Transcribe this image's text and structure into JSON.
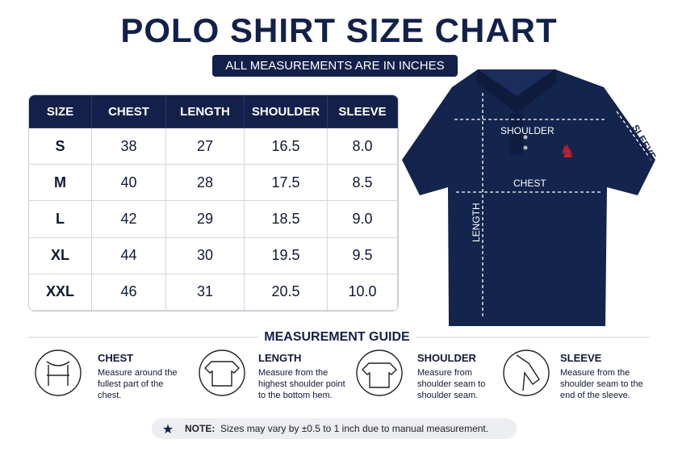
{
  "title": "POLO SHIRT SIZE CHART",
  "subtitle": "ALL MEASUREMENTS ARE IN INCHES",
  "table": {
    "header": [
      "SIZE",
      "CHEST",
      "LENGTH",
      "SHOULDER",
      "SLEEVE"
    ],
    "rows": [
      [
        "S",
        "38",
        "27",
        "16.5",
        "8.0"
      ],
      [
        "M",
        "40",
        "28",
        "17.5",
        "8.5"
      ],
      [
        "L",
        "42",
        "29",
        "18.5",
        "9.0"
      ],
      [
        "XL",
        "44",
        "30",
        "19.5",
        "9.5"
      ],
      [
        "XXL",
        "46",
        "31",
        "20.5",
        "10.0"
      ]
    ]
  },
  "shirt": {
    "shoulder": "SHOULDER",
    "chest": "CHEST",
    "length": "LENGTH",
    "sleeve": "SLEEVE"
  },
  "guide": {
    "title": "MEASUREMENT GUIDE",
    "items": [
      {
        "title": "CHEST",
        "text": "Measure around the fullest part of the chest."
      },
      {
        "title": "LENGTH",
        "text": "Measure from the highest shoulder point to the bottom hem."
      },
      {
        "title": "SHOULDER",
        "text": "Measure from shoulder seam to shoulder seam."
      },
      {
        "title": "SLEEVE",
        "text": "Measure from the shoulder seam to the end of the sleeve."
      }
    ]
  },
  "note": {
    "label": "NOTE:",
    "text": "Sizes may vary by ±0.5 to 1 inch due to manual measurement."
  }
}
